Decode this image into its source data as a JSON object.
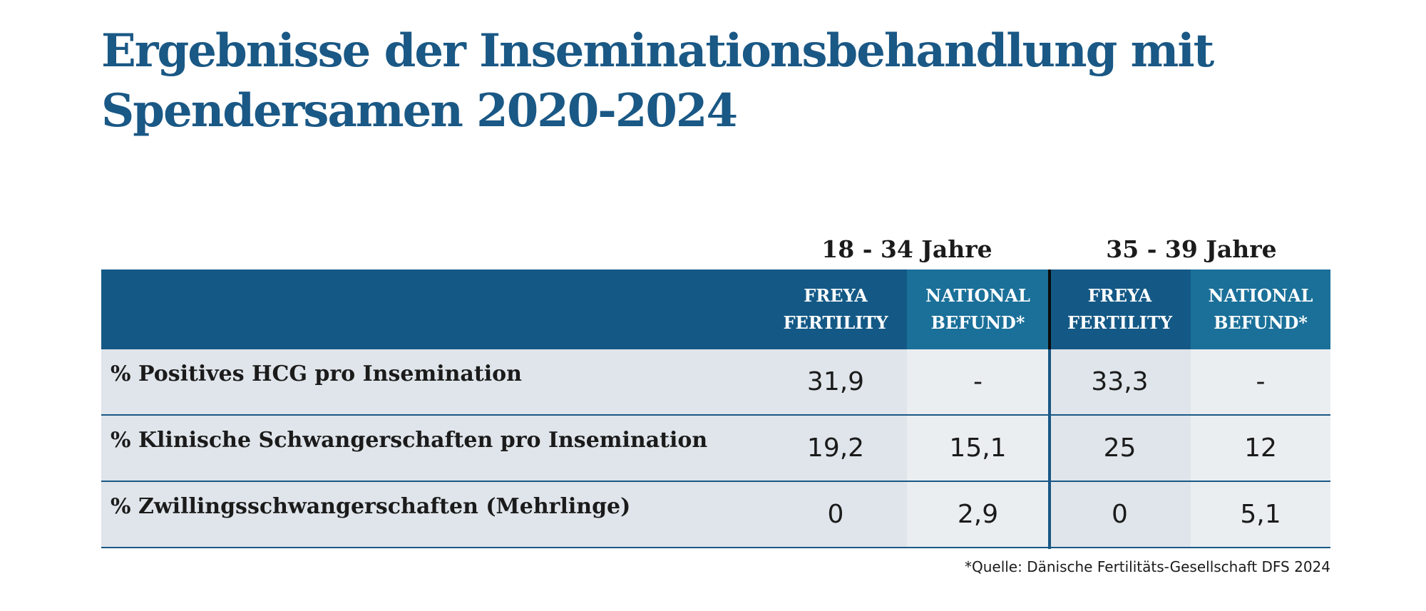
{
  "title": "Ergebnisse der Inseminationsbehandlung mit Spendersamen 2020-2024",
  "chart_data": {
    "type": "table",
    "title": "Ergebnisse der Inseminationsbehandlung mit Spendersamen 2020-2024",
    "age_groups": [
      "18 - 34 Jahre",
      "35 - 39 Jahre"
    ],
    "columns": [
      "FREYA\nFERTILITY",
      "NATIONAL\nBEFUND*",
      "FREYA\nFERTILITY",
      "NATIONAL\nBEFUND*"
    ],
    "rows": [
      {
        "label": "% Positives HCG pro Insemination",
        "values": [
          "31,9",
          "-",
          "33,3",
          "-"
        ]
      },
      {
        "label": "% Klinische Schwangerschaften pro Insemination",
        "values": [
          "19,2",
          "15,1",
          "25",
          "12"
        ]
      },
      {
        "label": "% Zwillingsschwangerschaften (Mehrlinge)",
        "values": [
          "0",
          "2,9",
          "0",
          "5,1"
        ]
      }
    ],
    "source": "*Quelle: Dänische Fertilitäts-Gesellschaft DFS 2024"
  },
  "colors": {
    "title": "#1a5885",
    "header_dark": "#145986",
    "header_national": "#1a7099",
    "row_freya": "#dfe5ea",
    "row_national": "#eaeef1"
  }
}
